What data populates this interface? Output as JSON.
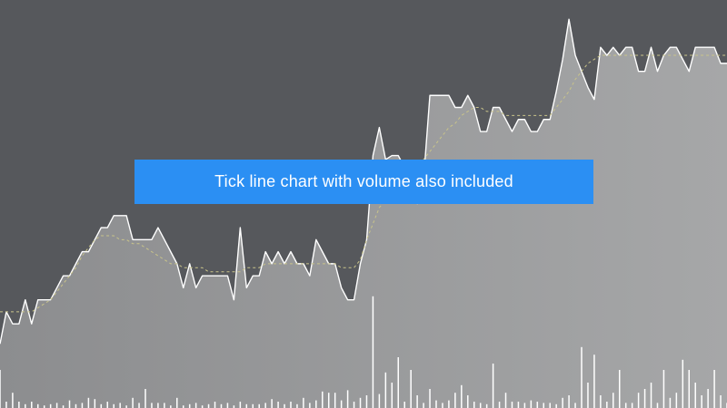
{
  "banner": {
    "text": "Tick line chart with volume also included",
    "color": "#2b8ff3"
  },
  "colors": {
    "background": "#56585c",
    "price_line": "#ffffff",
    "area_fill_start": "#8c8d8f",
    "area_fill_end": "#a6a7a8",
    "volume_bars": "#ffffff",
    "moving_average": "#c9c48a"
  },
  "chart_data": {
    "type": "line",
    "title": "",
    "xlabel": "",
    "ylabel": "",
    "grid": false,
    "legend": "none",
    "ylim": [
      0,
      100
    ],
    "volume_ylim": [
      0,
      100
    ],
    "series": [
      {
        "role": "price",
        "style": "area",
        "values": [
          16,
          24,
          21,
          21,
          27,
          21,
          27,
          27,
          27,
          30,
          33,
          33,
          36,
          39,
          39,
          42,
          45,
          45,
          48,
          48,
          48,
          42,
          42,
          42,
          42,
          45,
          42,
          39,
          36,
          30,
          36,
          30,
          33,
          33,
          33,
          33,
          33,
          27,
          45,
          30,
          33,
          33,
          39,
          36,
          39,
          36,
          39,
          36,
          36,
          33,
          42,
          39,
          36,
          36,
          30,
          27,
          27,
          36,
          42,
          63,
          70,
          62,
          63,
          63,
          60,
          57,
          51,
          57,
          78,
          78,
          78,
          78,
          75,
          75,
          78,
          75,
          69,
          69,
          75,
          75,
          72,
          69,
          72,
          72,
          69,
          69,
          72,
          72,
          79,
          87,
          97,
          88,
          84,
          80,
          77,
          90,
          88,
          90,
          88,
          90,
          90,
          84,
          84,
          90,
          84,
          88,
          90,
          90,
          87,
          84,
          90,
          90,
          90,
          90,
          86,
          86
        ]
      },
      {
        "role": "moving-average",
        "style": "dashed",
        "values": [
          24,
          24,
          24,
          24,
          24,
          24,
          25,
          26,
          27,
          29,
          31,
          33,
          35,
          38,
          40,
          42,
          43,
          43,
          43,
          42,
          42,
          41,
          41,
          40,
          39,
          38,
          37,
          36,
          36,
          35,
          35,
          35,
          35,
          34,
          34,
          34,
          34,
          34,
          34,
          35,
          35,
          35,
          36,
          36,
          36,
          36,
          36,
          36,
          36,
          36,
          36,
          36,
          36,
          36,
          35,
          35,
          35,
          37,
          42,
          46,
          50,
          52,
          54,
          56,
          58,
          59,
          60,
          62,
          64,
          66,
          68,
          70,
          71,
          73,
          74,
          75,
          75,
          74,
          74,
          74,
          73,
          73,
          73,
          73,
          73,
          73,
          73,
          73,
          75,
          77,
          79,
          82,
          84,
          86,
          87,
          88,
          88,
          88,
          88,
          88,
          88,
          88,
          88,
          88,
          88,
          88,
          88,
          88,
          88,
          88,
          88,
          88,
          88,
          88,
          88,
          88
        ]
      }
    ],
    "volume": [
      30,
      5,
      12,
      5,
      3,
      5,
      3,
      2,
      3,
      4,
      2,
      6,
      3,
      4,
      8,
      7,
      3,
      5,
      3,
      4,
      2,
      8,
      4,
      15,
      4,
      4,
      4,
      2,
      8,
      2,
      3,
      4,
      2,
      3,
      5,
      3,
      4,
      2,
      5,
      3,
      3,
      3,
      4,
      7,
      5,
      3,
      5,
      3,
      8,
      4,
      6,
      13,
      12,
      12,
      6,
      14,
      5,
      8,
      10,
      88,
      11,
      28,
      20,
      40,
      5,
      30,
      10,
      4,
      15,
      6,
      4,
      6,
      12,
      18,
      10,
      5,
      4,
      3,
      35,
      5,
      12,
      5,
      5,
      4,
      6,
      5,
      4,
      4,
      3,
      8,
      10,
      4,
      48,
      20,
      42,
      10,
      5,
      12,
      30,
      4,
      4,
      12,
      15,
      20,
      4,
      30,
      8,
      12,
      38,
      30,
      20,
      10,
      15,
      30,
      10,
      4
    ]
  }
}
